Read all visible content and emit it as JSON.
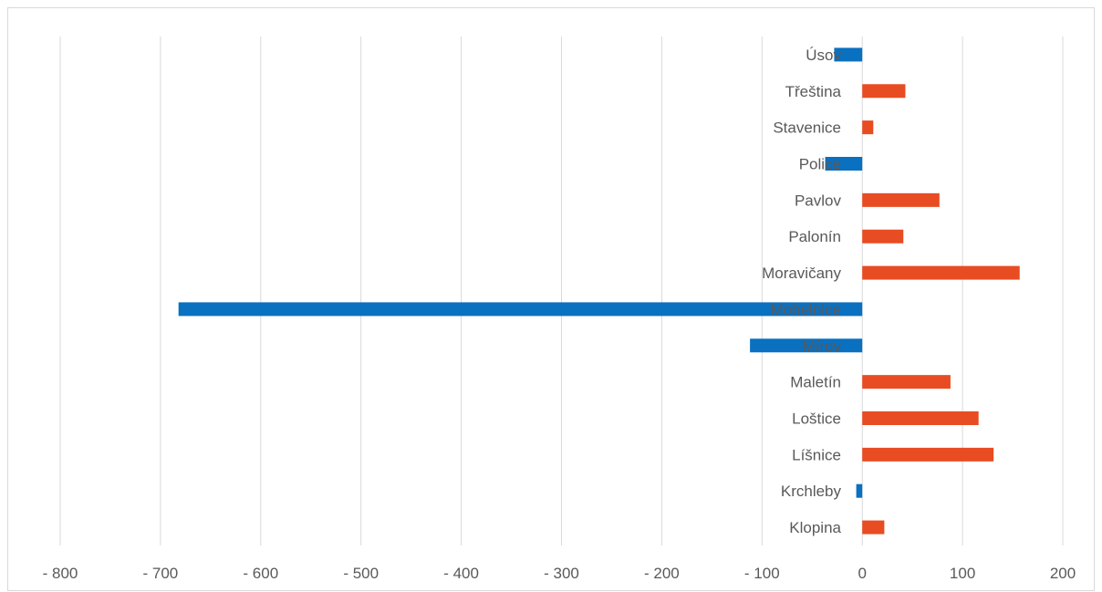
{
  "chart_data": {
    "type": "bar",
    "orientation": "horizontal",
    "title": "",
    "xlabel": "",
    "ylabel": "",
    "xlim": [
      -800,
      200
    ],
    "x_ticks": [
      -800,
      -700,
      -600,
      -500,
      -400,
      -300,
      -200,
      -100,
      0,
      100,
      200
    ],
    "x_tick_labels": [
      "- 800",
      "- 700",
      "- 600",
      "- 500",
      "- 400",
      "- 300",
      "- 200",
      "- 100",
      "0",
      "100",
      "200"
    ],
    "grid": "vertical",
    "legend": "none",
    "categories": [
      "Úsov",
      "Třeština",
      "Stavenice",
      "Police",
      "Pavlov",
      "Palonín",
      "Moravičany",
      "Mohelnice",
      "Mírov",
      "Maletín",
      "Loštice",
      "Líšnice",
      "Krchleby",
      "Klopina"
    ],
    "values": [
      -28,
      43,
      11,
      -37,
      77,
      41,
      157,
      -682,
      -112,
      88,
      116,
      131,
      -6,
      22
    ],
    "colors": {
      "positive": "#e84c22",
      "negative": "#0a70c0",
      "grid": "#d9d9d9",
      "text": "#595959"
    }
  }
}
